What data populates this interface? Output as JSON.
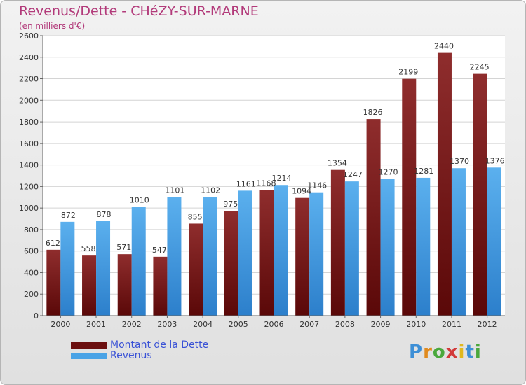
{
  "header": {
    "title": "Revenus/Dette - CHéZY-SUR-MARNE",
    "subtitle": "(en milliers d'€)"
  },
  "logo": {
    "text": "Proxiti"
  },
  "colors": {
    "debt": "#7a1a1a",
    "revenue": "#4aa3e6",
    "title": "#b23a7a",
    "legend_text": "#3a52d6"
  },
  "chart_data": {
    "type": "bar",
    "title": "Revenus/Dette - CHéZY-SUR-MARNE",
    "subtitle": "(en milliers d'€)",
    "categories": [
      "2000",
      "2001",
      "2002",
      "2003",
      "2004",
      "2005",
      "2006",
      "2007",
      "2008",
      "2009",
      "2010",
      "2011",
      "2012"
    ],
    "series": [
      {
        "name": "Montant de la Dette",
        "values": [
          612,
          558,
          571,
          547,
          855,
          975,
          1168,
          1094,
          1354,
          1826,
          2199,
          2440,
          2245
        ]
      },
      {
        "name": "Revenus",
        "values": [
          872,
          878,
          1010,
          1101,
          1102,
          1161,
          1214,
          1146,
          1247,
          1270,
          1281,
          1370,
          1376
        ]
      }
    ],
    "ylim": [
      0,
      2600
    ],
    "yticks": [
      0,
      200,
      400,
      600,
      800,
      1000,
      1200,
      1400,
      1600,
      1800,
      2000,
      2200,
      2400,
      2600
    ],
    "grid": true,
    "legend_position": "bottom-left"
  }
}
